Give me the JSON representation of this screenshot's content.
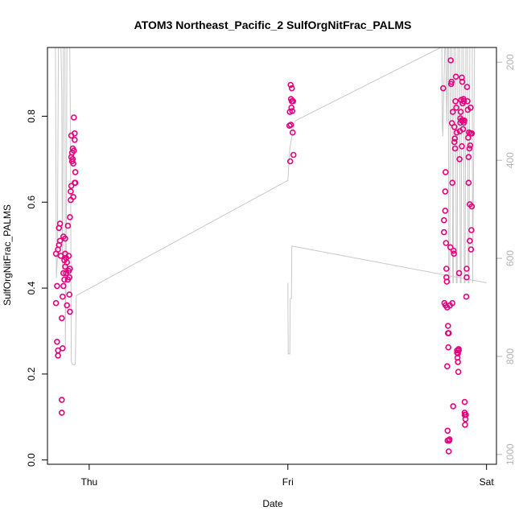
{
  "chart_data": {
    "type": "scatter",
    "title": "ATOM3 Northeast_Pacific_2 SulfOrgNitFrac_PALMS",
    "xlabel": "Date",
    "ylabel": "SulfOrgNitFrac_PALMS",
    "x_unit": "day",
    "x_ticks": [
      {
        "value": 1.0,
        "label": "Thu"
      },
      {
        "value": 2.0,
        "label": "Fri"
      },
      {
        "value": 3.0,
        "label": "Sat"
      }
    ],
    "y_ticks": [
      0.0,
      0.2,
      0.4,
      0.6,
      0.8
    ],
    "y_ticks_right": [
      200,
      400,
      600,
      800,
      1000
    ],
    "xlim": [
      0.79,
      3.05
    ],
    "ylim": [
      -0.01,
      0.96
    ],
    "ylim_right": [
      1020,
      170
    ],
    "grid": false,
    "colors": {
      "points": "#e6007e",
      "pressure_line": "#c8c8c8",
      "secondary_axis": "#b3b3b3"
    },
    "series": [
      {
        "values": [
          [
            0.833,
            0.48
          ],
          [
            0.833,
            0.365
          ],
          [
            0.838,
            0.405
          ],
          [
            0.838,
            0.275
          ],
          [
            0.843,
            0.255
          ],
          [
            0.843,
            0.243
          ],
          [
            0.843,
            0.49
          ],
          [
            0.848,
            0.5
          ],
          [
            0.848,
            0.54
          ],
          [
            0.853,
            0.51
          ],
          [
            0.853,
            0.55
          ],
          [
            0.857,
            0.475
          ],
          [
            0.862,
            0.14
          ],
          [
            0.862,
            0.11
          ],
          [
            0.862,
            0.33
          ],
          [
            0.866,
            0.26
          ],
          [
            0.866,
            0.38
          ],
          [
            0.87,
            0.405
          ],
          [
            0.87,
            0.435
          ],
          [
            0.87,
            0.52
          ],
          [
            0.875,
            0.465
          ],
          [
            0.875,
            0.42
          ],
          [
            0.879,
            0.48
          ],
          [
            0.879,
            0.515
          ],
          [
            0.879,
            0.45
          ],
          [
            0.884,
            0.47
          ],
          [
            0.884,
            0.435
          ],
          [
            0.888,
            0.46
          ],
          [
            0.888,
            0.36
          ],
          [
            0.893,
            0.42
          ],
          [
            0.893,
            0.545
          ],
          [
            0.897,
            0.44
          ],
          [
            0.897,
            0.475
          ],
          [
            0.9,
            0.425
          ],
          [
            0.9,
            0.385
          ],
          [
            0.903,
            0.445
          ],
          [
            0.903,
            0.345
          ],
          [
            0.903,
            0.565
          ],
          [
            0.907,
            0.605
          ],
          [
            0.907,
            0.625
          ],
          [
            0.91,
            0.638
          ],
          [
            0.91,
            0.705
          ],
          [
            0.91,
            0.755
          ],
          [
            0.914,
            0.695
          ],
          [
            0.914,
            0.715
          ],
          [
            0.917,
            0.725
          ],
          [
            0.917,
            0.7
          ],
          [
            0.92,
            0.612
          ],
          [
            0.92,
            0.69
          ],
          [
            0.923,
            0.72
          ],
          [
            0.923,
            0.797
          ],
          [
            0.927,
            0.745
          ],
          [
            0.927,
            0.76
          ],
          [
            0.927,
            0.645
          ],
          [
            0.93,
            0.645
          ],
          [
            0.93,
            0.67
          ],
          [
            2.008,
            0.778
          ],
          [
            2.01,
            0.81
          ],
          [
            2.012,
            0.695
          ],
          [
            2.014,
            0.873
          ],
          [
            2.015,
            0.78
          ],
          [
            2.016,
            0.84
          ],
          [
            2.018,
            0.82
          ],
          [
            2.02,
            0.865
          ],
          [
            2.02,
            0.835
          ],
          [
            2.022,
            0.812
          ],
          [
            2.024,
            0.762
          ],
          [
            2.026,
            0.835
          ],
          [
            2.028,
            0.71
          ],
          [
            2.782,
            0.865
          ],
          [
            2.786,
            0.53
          ],
          [
            2.786,
            0.558
          ],
          [
            2.788,
            0.365
          ],
          [
            2.792,
            0.58
          ],
          [
            2.792,
            0.625
          ],
          [
            2.794,
            0.67
          ],
          [
            2.794,
            0.36
          ],
          [
            2.796,
            0.505
          ],
          [
            2.798,
            0.445
          ],
          [
            2.798,
            0.425
          ],
          [
            2.8,
            0.415
          ],
          [
            2.802,
            0.355
          ],
          [
            2.802,
            0.218
          ],
          [
            2.804,
            0.045
          ],
          [
            2.804,
            0.068
          ],
          [
            2.806,
            0.312
          ],
          [
            2.806,
            0.295
          ],
          [
            2.808,
            0.262
          ],
          [
            2.81,
            0.295
          ],
          [
            2.81,
            0.02
          ],
          [
            2.812,
            0.045
          ],
          [
            2.814,
            0.048
          ],
          [
            2.816,
            0.36
          ],
          [
            2.818,
            0.495
          ],
          [
            2.82,
            0.93
          ],
          [
            2.822,
            0.875
          ],
          [
            2.824,
            0.88
          ],
          [
            2.826,
            0.784
          ],
          [
            2.828,
            0.645
          ],
          [
            2.828,
            0.365
          ],
          [
            2.83,
            0.81
          ],
          [
            2.832,
            0.125
          ],
          [
            2.834,
            0.487
          ],
          [
            2.836,
            0.48
          ],
          [
            2.838,
            0.775
          ],
          [
            2.838,
            0.74
          ],
          [
            2.84,
            0.748
          ],
          [
            2.842,
            0.725
          ],
          [
            2.844,
            0.835
          ],
          [
            2.846,
            0.892
          ],
          [
            2.848,
            0.82
          ],
          [
            2.85,
            0.762
          ],
          [
            2.852,
            0.255
          ],
          [
            2.852,
            0.25
          ],
          [
            2.854,
            0.238
          ],
          [
            2.856,
            0.248
          ],
          [
            2.856,
            0.228
          ],
          [
            2.858,
            0.205
          ],
          [
            2.86,
            0.255
          ],
          [
            2.86,
            0.258
          ],
          [
            2.862,
            0.435
          ],
          [
            2.864,
            0.7
          ],
          [
            2.866,
            0.765
          ],
          [
            2.868,
            0.795
          ],
          [
            2.868,
            0.785
          ],
          [
            2.87,
            0.81
          ],
          [
            2.872,
            0.838
          ],
          [
            2.874,
            0.79
          ],
          [
            2.876,
            0.73
          ],
          [
            2.876,
            0.89
          ],
          [
            2.878,
            0.88
          ],
          [
            2.88,
            0.83
          ],
          [
            2.882,
            0.79
          ],
          [
            2.882,
            0.77
          ],
          [
            2.884,
            0.84
          ],
          [
            2.886,
            0.835
          ],
          [
            2.886,
            0.785
          ],
          [
            2.888,
            0.79
          ],
          [
            2.89,
            0.11
          ],
          [
            2.89,
            0.105
          ],
          [
            2.89,
            0.135
          ],
          [
            2.892,
            0.082
          ],
          [
            2.894,
            0.095
          ],
          [
            2.896,
            0.105
          ],
          [
            2.898,
            0.38
          ],
          [
            2.9,
            0.425
          ],
          [
            2.9,
            0.445
          ],
          [
            2.902,
            0.868
          ],
          [
            2.904,
            0.835
          ],
          [
            2.906,
            0.815
          ],
          [
            2.908,
            0.75
          ],
          [
            2.91,
            0.645
          ],
          [
            2.91,
            0.705
          ],
          [
            2.912,
            0.762
          ],
          [
            2.914,
            0.725
          ],
          [
            2.916,
            0.595
          ],
          [
            2.916,
            0.51
          ],
          [
            2.918,
            0.732
          ],
          [
            2.92,
            0.76
          ],
          [
            2.92,
            0.82
          ],
          [
            2.922,
            0.49
          ],
          [
            2.924,
            0.535
          ],
          [
            2.926,
            0.76
          ],
          [
            2.926,
            0.59
          ]
        ]
      }
    ],
    "secondary_series": {
      "name": "pressure",
      "values": [
        [
          0.79,
          170
        ],
        [
          0.83,
          170
        ],
        [
          0.835,
          640
        ],
        [
          0.84,
          600
        ],
        [
          0.845,
          170
        ],
        [
          0.85,
          170
        ],
        [
          0.855,
          170
        ],
        [
          0.858,
          170
        ],
        [
          0.862,
          260
        ],
        [
          0.864,
          560
        ],
        [
          0.866,
          630
        ],
        [
          0.87,
          170
        ],
        [
          0.878,
          170
        ],
        [
          0.88,
          780
        ],
        [
          0.884,
          620
        ],
        [
          0.888,
          170
        ],
        [
          0.893,
          170
        ],
        [
          0.897,
          170
        ],
        [
          0.902,
          170
        ],
        [
          0.906,
          350
        ],
        [
          0.91,
          810
        ],
        [
          0.914,
          815
        ],
        [
          0.918,
          816
        ],
        [
          0.922,
          818
        ],
        [
          0.93,
          816
        ],
        [
          0.935,
          676
        ],
        [
          2.0,
          441
        ],
        [
          2.01,
          376
        ],
        [
          2.035,
          320
        ],
        [
          2.77,
          170
        ],
        [
          2.775,
          170
        ],
        [
          2.778,
          334
        ],
        [
          2.78,
          351
        ],
        [
          2.79,
          170
        ],
        [
          2.793,
          170
        ],
        [
          2.795,
          170
        ],
        [
          2.8,
          325
        ],
        [
          2.805,
          170
        ],
        [
          2.808,
          170
        ],
        [
          2.81,
          650
        ],
        [
          2.815,
          650
        ],
        [
          2.818,
          170
        ],
        [
          2.822,
          170
        ],
        [
          2.826,
          170
        ],
        [
          2.83,
          650
        ],
        [
          2.833,
          650
        ],
        [
          2.836,
          170
        ],
        [
          2.84,
          170
        ],
        [
          2.844,
          170
        ],
        [
          2.848,
          650
        ],
        [
          2.852,
          650
        ],
        [
          2.856,
          170
        ],
        [
          2.86,
          170
        ],
        [
          2.864,
          170
        ],
        [
          2.868,
          650
        ],
        [
          2.872,
          650
        ],
        [
          2.876,
          170
        ],
        [
          2.88,
          170
        ],
        [
          2.884,
          170
        ],
        [
          2.888,
          650
        ],
        [
          2.892,
          650
        ],
        [
          2.896,
          170
        ],
        [
          2.9,
          170
        ],
        [
          2.904,
          170
        ],
        [
          2.908,
          650
        ],
        [
          2.912,
          650
        ],
        [
          2.916,
          170
        ],
        [
          2.92,
          170
        ],
        [
          2.924,
          170
        ],
        [
          2.926,
          170
        ],
        [
          2.928,
          170
        ],
        [
          2.93,
          650
        ],
        [
          2.94,
          170
        ],
        [
          2.95,
          170
        ],
        [
          3.0,
          170
        ]
      ]
    },
    "secondary_series_2": {
      "name": "pressure-fri",
      "values": [
        [
          2.0,
          650
        ],
        [
          2.002,
          795
        ],
        [
          2.01,
          795
        ],
        [
          2.012,
          682
        ],
        [
          2.018,
          682
        ],
        [
          2.02,
          575
        ],
        [
          3.0,
          650
        ]
      ]
    }
  }
}
